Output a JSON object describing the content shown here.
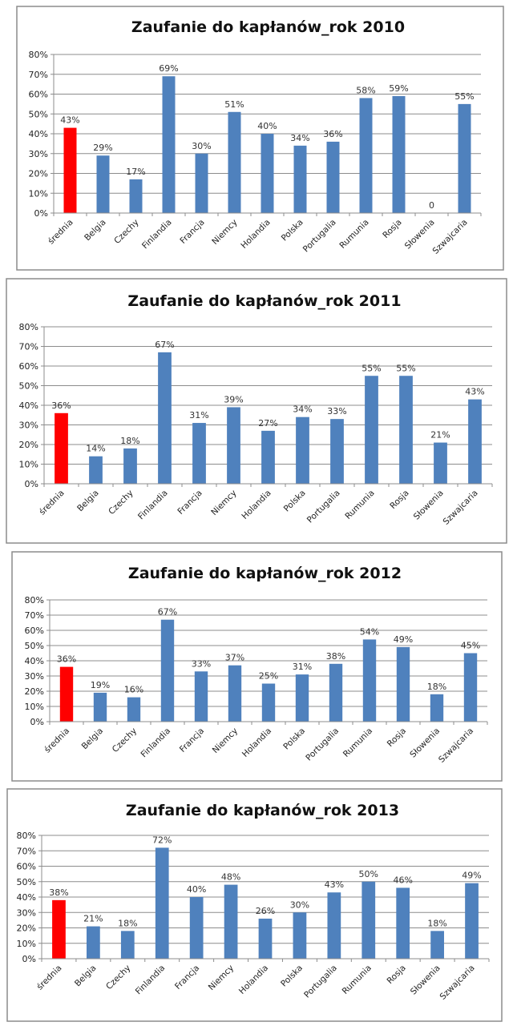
{
  "chart_data": [
    {
      "type": "bar",
      "title": "Zaufanie do kapłanów_rok 2010",
      "categories": [
        "średnia",
        "Belgia",
        "Czechy",
        "Finlandia",
        "Francja",
        "Niemcy",
        "Holandia",
        "Polska",
        "Portugalia",
        "Rumunia",
        "Rosja",
        "Słowenia",
        "Szwajcaria"
      ],
      "values": [
        43,
        29,
        17,
        69,
        30,
        51,
        40,
        34,
        36,
        58,
        59,
        0,
        55
      ],
      "data_labels": [
        "43%",
        "29%",
        "17%",
        "69%",
        "30%",
        "51%",
        "40%",
        "34%",
        "36%",
        "58%",
        "59%",
        "0",
        "55%"
      ],
      "y_ticks": [
        "0%",
        "10%",
        "20%",
        "30%",
        "40%",
        "50%",
        "60%",
        "70%",
        "80%"
      ],
      "ylim": [
        0,
        80
      ],
      "grid": true,
      "xlabel": "",
      "ylabel": "",
      "colors": {
        "highlight": "#ff0000",
        "bar": "#4f81bd"
      }
    },
    {
      "type": "bar",
      "title": "Zaufanie do kapłanów_rok 2011",
      "categories": [
        "średnia",
        "Belgia",
        "Czechy",
        "Finlandia",
        "Francja",
        "Niemcy",
        "Holandia",
        "Polska",
        "Portugalia",
        "Rumunia",
        "Rosja",
        "Słowenia",
        "Szwajcaria"
      ],
      "values": [
        36,
        14,
        18,
        67,
        31,
        39,
        27,
        34,
        33,
        55,
        55,
        21,
        43
      ],
      "data_labels": [
        "36%",
        "14%",
        "18%",
        "67%",
        "31%",
        "39%",
        "27%",
        "34%",
        "33%",
        "55%",
        "55%",
        "21%",
        "43%"
      ],
      "y_ticks": [
        "0%",
        "10%",
        "20%",
        "30%",
        "40%",
        "50%",
        "60%",
        "70%",
        "80%"
      ],
      "ylim": [
        0,
        80
      ],
      "grid": true,
      "xlabel": "",
      "ylabel": "",
      "colors": {
        "highlight": "#ff0000",
        "bar": "#4f81bd"
      }
    },
    {
      "type": "bar",
      "title": "Zaufanie do kapłanów_rok 2012",
      "categories": [
        "średnia",
        "Belgia",
        "Czechy",
        "Finlandia",
        "Francja",
        "Niemcy",
        "Holandia",
        "Polska",
        "Portugalia",
        "Rumunia",
        "Rosja",
        "Słowenia",
        "Szwajcaria"
      ],
      "values": [
        36,
        19,
        16,
        67,
        33,
        37,
        25,
        31,
        38,
        54,
        49,
        18,
        45
      ],
      "data_labels": [
        "36%",
        "19%",
        "16%",
        "67%",
        "33%",
        "37%",
        "25%",
        "31%",
        "38%",
        "54%",
        "49%",
        "18%",
        "45%"
      ],
      "y_ticks": [
        "0%",
        "10%",
        "20%",
        "30%",
        "40%",
        "50%",
        "60%",
        "70%",
        "80%"
      ],
      "ylim": [
        0,
        80
      ],
      "grid": true,
      "xlabel": "",
      "ylabel": "",
      "colors": {
        "highlight": "#ff0000",
        "bar": "#4f81bd"
      }
    },
    {
      "type": "bar",
      "title": "Zaufanie do kapłanów_rok 2013",
      "categories": [
        "średnia",
        "Belgia",
        "Czechy",
        "Finlandia",
        "Francja",
        "Niemcy",
        "Holandia",
        "Polska",
        "Portugalia",
        "Rumunia",
        "Rosja",
        "Słowenia",
        "Szwajcaria"
      ],
      "values": [
        38,
        21,
        18,
        72,
        40,
        48,
        26,
        30,
        43,
        50,
        46,
        18,
        49
      ],
      "data_labels": [
        "38%",
        "21%",
        "18%",
        "72%",
        "40%",
        "48%",
        "26%",
        "30%",
        "43%",
        "50%",
        "46%",
        "18%",
        "49%"
      ],
      "y_ticks": [
        "0%",
        "10%",
        "20%",
        "30%",
        "40%",
        "50%",
        "60%",
        "70%",
        "80%"
      ],
      "ylim": [
        0,
        80
      ],
      "grid": true,
      "xlabel": "",
      "ylabel": "",
      "colors": {
        "highlight": "#ff0000",
        "bar": "#4f81bd"
      }
    }
  ]
}
